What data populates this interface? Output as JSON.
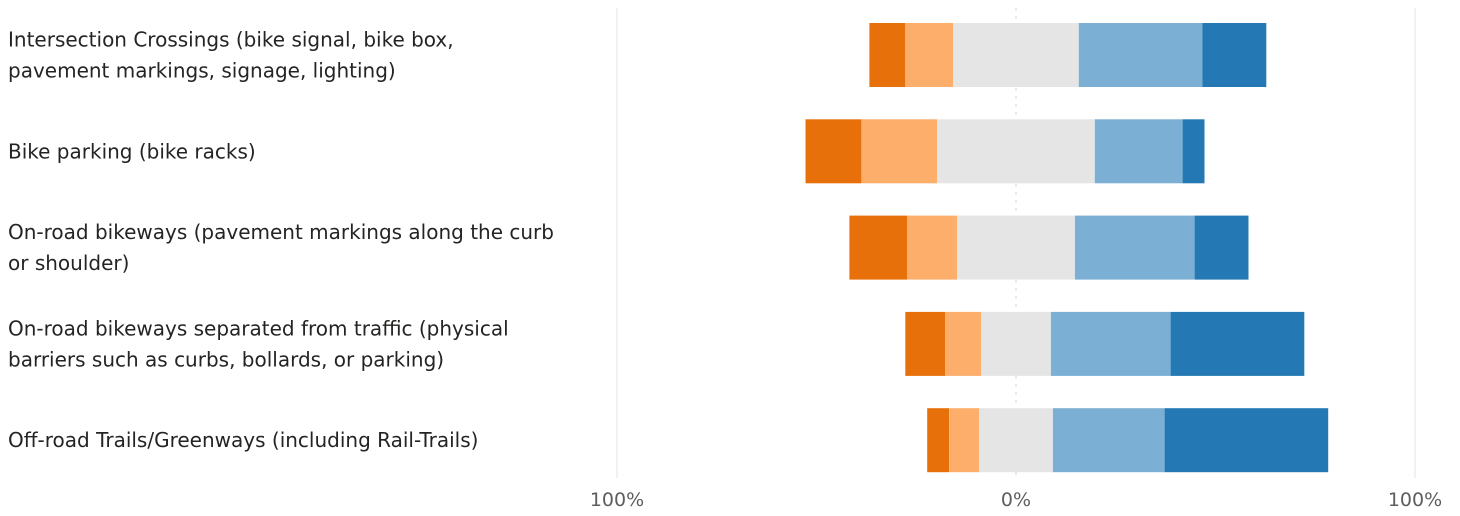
{
  "chart_data": {
    "type": "bar",
    "orientation": "horizontal",
    "stacking": "diverging",
    "grid": true,
    "legend": "none",
    "categories": [
      [
        "Intersection Crossings (bike signal, bike box,",
        "pavement markings, signage, lighting)"
      ],
      [
        "Bike parking (bike racks)"
      ],
      [
        "On-road bikeways (pavement markings along the curb",
        "or shoulder)"
      ],
      [
        "On-road bikeways separated from traffic (physical",
        "barriers such as curbs, bollards, or parking)"
      ],
      [
        "Off-road Trails/Greenways (including Rail-Trails)"
      ]
    ],
    "series": [
      {
        "color": "#e8700a",
        "values": [
          9,
          14,
          14.5,
          10,
          5.5
        ],
        "side": "negative"
      },
      {
        "color": "#fdae6b",
        "values": [
          12,
          19,
          12.5,
          9,
          7.5
        ],
        "side": "negative"
      },
      {
        "color": "#e5e5e5",
        "values": [
          31.5,
          39.5,
          29.5,
          17.5,
          18.5
        ],
        "side": "neutral"
      },
      {
        "color": "#7bafd4",
        "values": [
          31,
          22,
          30,
          30,
          28
        ],
        "side": "positive"
      },
      {
        "color": "#2479b4",
        "values": [
          16,
          5.5,
          13.5,
          33.5,
          41
        ],
        "side": "positive"
      }
    ],
    "x_ticks": [
      "100%",
      "0%",
      "100%"
    ],
    "xlim": [
      -100,
      100
    ]
  }
}
